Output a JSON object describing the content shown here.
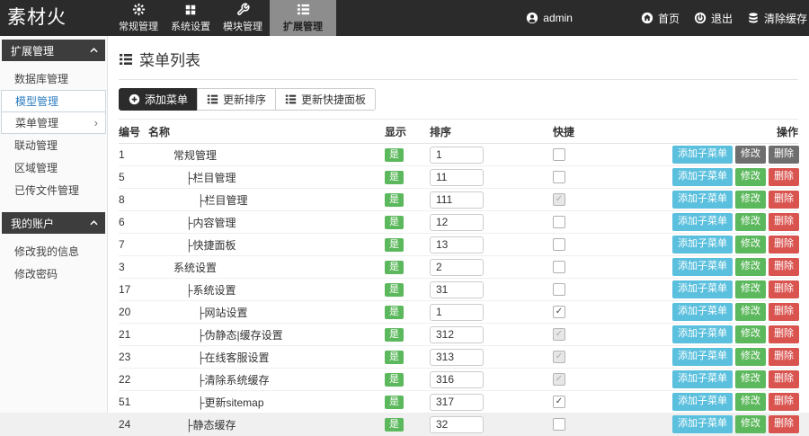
{
  "topbar": {
    "logo": "素材火",
    "nav": [
      {
        "label": "常规管理",
        "icon": "burst-icon",
        "active": false
      },
      {
        "label": "系统设置",
        "icon": "grid-icon",
        "active": false
      },
      {
        "label": "模块管理",
        "icon": "wrench-icon",
        "active": false
      },
      {
        "label": "扩展管理",
        "icon": "list-icon",
        "active": true
      }
    ],
    "user": {
      "label": "admin",
      "icon": "user-icon"
    },
    "links": [
      {
        "label": "首页",
        "icon": "home-icon"
      },
      {
        "label": "退出",
        "icon": "logout-icon"
      },
      {
        "label": "清除缓存",
        "icon": "cache-icon"
      }
    ]
  },
  "sidebar": {
    "submenu_arrow": "›",
    "sections": [
      {
        "title": "扩展管理",
        "items": [
          {
            "label": "数据库管理",
            "state": "normal"
          },
          {
            "label": "模型管理",
            "state": "active"
          },
          {
            "label": "菜单管理",
            "state": "open"
          },
          {
            "label": "联动管理",
            "state": "normal"
          },
          {
            "label": "区域管理",
            "state": "normal"
          },
          {
            "label": "已传文件管理",
            "state": "normal"
          }
        ]
      },
      {
        "title": "我的账户",
        "items": [
          {
            "label": "修改我的信息",
            "state": "normal"
          },
          {
            "label": "修改密码",
            "state": "normal"
          }
        ]
      }
    ]
  },
  "main": {
    "title": "菜单列表",
    "toolbar": [
      {
        "label": "添加菜单",
        "style": "dark",
        "icon": "plus-circle-icon"
      },
      {
        "label": "更新排序",
        "style": "light",
        "icon": "list-icon"
      },
      {
        "label": "更新快捷面板",
        "style": "light",
        "icon": "list-icon"
      }
    ],
    "table": {
      "headers": [
        "编号",
        "名称",
        "显示",
        "排序",
        "快捷",
        "操作"
      ],
      "tree_prefix": "├",
      "check_glyph": "✓",
      "actions": [
        "添加子菜单",
        "修改",
        "删除"
      ],
      "rows": [
        {
          "id": "1",
          "name": "常规管理",
          "indent": 0,
          "visible": "是",
          "sort": "1",
          "quick": "unchecked",
          "muted_ops": true
        },
        {
          "id": "5",
          "name": "栏目管理",
          "indent": 1,
          "visible": "是",
          "sort": "11",
          "quick": "unchecked"
        },
        {
          "id": "8",
          "name": "栏目管理",
          "indent": 2,
          "visible": "是",
          "sort": "111",
          "quick": "dim"
        },
        {
          "id": "6",
          "name": "内容管理",
          "indent": 1,
          "visible": "是",
          "sort": "12",
          "quick": "unchecked"
        },
        {
          "id": "7",
          "name": "快捷面板",
          "indent": 1,
          "visible": "是",
          "sort": "13",
          "quick": "unchecked"
        },
        {
          "id": "3",
          "name": "系统设置",
          "indent": 0,
          "visible": "是",
          "sort": "2",
          "quick": "unchecked"
        },
        {
          "id": "17",
          "name": "系统设置",
          "indent": 1,
          "visible": "是",
          "sort": "31",
          "quick": "unchecked"
        },
        {
          "id": "20",
          "name": "网站设置",
          "indent": 2,
          "visible": "是",
          "sort": "1",
          "quick": "checked"
        },
        {
          "id": "21",
          "name": "伪静态|缓存设置",
          "indent": 2,
          "visible": "是",
          "sort": "312",
          "quick": "dim"
        },
        {
          "id": "23",
          "name": "在线客服设置",
          "indent": 2,
          "visible": "是",
          "sort": "313",
          "quick": "dim"
        },
        {
          "id": "22",
          "name": "清除系统缓存",
          "indent": 2,
          "visible": "是",
          "sort": "316",
          "quick": "dim"
        },
        {
          "id": "51",
          "name": "更新sitemap",
          "indent": 2,
          "visible": "是",
          "sort": "317",
          "quick": "checked"
        },
        {
          "id": "24",
          "name": "静态缓存",
          "indent": 1,
          "visible": "是",
          "sort": "32",
          "quick": "unchecked"
        }
      ]
    }
  },
  "colors": {
    "topbar_bg": "#2b2b2b",
    "nav_active_bg": "#8d8d8d",
    "sidebar_header_bg": "#3d3d3d",
    "active_link_blue": "#2d7dc1",
    "badge_green": "#5cb85c",
    "btn_blue": "#5bc0de",
    "btn_green": "#5cb85c",
    "btn_red": "#d9534f",
    "btn_gray": "#6e6e6e"
  }
}
